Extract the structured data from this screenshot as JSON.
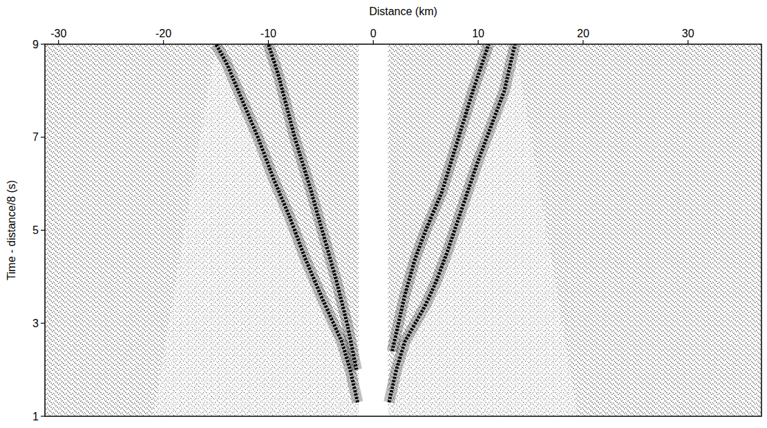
{
  "chart_data": {
    "type": "line",
    "xlabel": "Distance (km)",
    "ylabel": "Time - distance/8 (s)",
    "xlim": [
      -31.3,
      37.0
    ],
    "ylim": [
      1,
      9
    ],
    "xticks": [
      -30,
      -20,
      -10,
      0,
      10,
      20,
      30
    ],
    "yticks": [
      1,
      3,
      5,
      7,
      9
    ],
    "no_data": [
      -1.4,
      1.4
    ],
    "series": [
      {
        "color": "#000000",
        "x": [
          -1.5,
          -2.2,
          -3.0,
          -4.0,
          -5.0,
          -6.5,
          -8.0,
          -9.5,
          -11.0,
          -12.5,
          -14.0,
          -15.0
        ],
        "values": [
          1.3,
          2.0,
          2.6,
          3.1,
          3.6,
          4.4,
          5.3,
          6.1,
          7.0,
          7.8,
          8.6,
          9.0
        ]
      },
      {
        "color": "#000000",
        "x": [
          -1.6,
          -2.5,
          -3.5,
          -4.5,
          -6.0,
          -7.5,
          -9.0,
          -10.0
        ],
        "values": [
          2.0,
          3.0,
          3.9,
          4.7,
          5.9,
          7.0,
          8.3,
          9.0
        ]
      },
      {
        "color": "#000000",
        "x": [
          1.5,
          2.2,
          3.0,
          4.0,
          5.0,
          6.0,
          7.0,
          8.5,
          10.0,
          11.5,
          12.5,
          13.5
        ],
        "values": [
          1.3,
          2.0,
          2.6,
          3.0,
          3.4,
          3.9,
          4.5,
          5.5,
          6.5,
          7.4,
          8.0,
          9.0
        ]
      },
      {
        "color": "#000000",
        "x": [
          1.8,
          3.0,
          4.0,
          5.0,
          6.5,
          8.0,
          9.5,
          11.0
        ],
        "values": [
          2.4,
          3.6,
          4.4,
          5.0,
          5.8,
          6.9,
          8.0,
          9.0
        ]
      }
    ]
  }
}
